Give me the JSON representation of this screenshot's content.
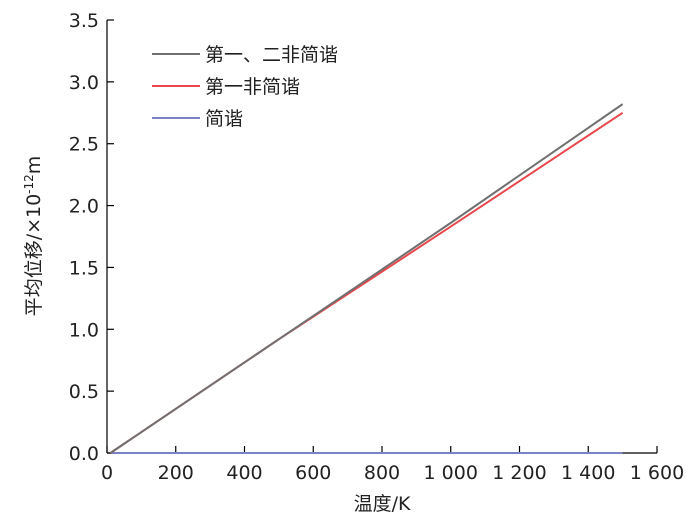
{
  "chart_data": {
    "type": "line",
    "xlabel": "温度/K",
    "ylabel": "平均位移/×10",
    "ylabel_exponent": "-12",
    "ylabel_unit": "m",
    "xlim": [
      0,
      1600
    ],
    "ylim": [
      0,
      3.5
    ],
    "x_ticks": [
      0,
      200,
      400,
      600,
      800,
      1000,
      1200,
      1400,
      1600
    ],
    "x_tick_labels": [
      "0",
      "200",
      "400",
      "600",
      "800",
      "1 000",
      "1 200",
      "1 400",
      "1 600"
    ],
    "y_ticks": [
      0,
      0.5,
      1.0,
      1.5,
      2.0,
      2.5,
      3.0,
      3.5
    ],
    "y_tick_labels": [
      "0.0",
      "0.5",
      "1.0",
      "1.5",
      "2.0",
      "2.5",
      "3.0",
      "3.5"
    ],
    "grid": false,
    "legend_position": "top-left",
    "series": [
      {
        "name": "第一、二非简谐",
        "color": "#707070",
        "x": [
          10,
          500,
          1000,
          1500
        ],
        "y": [
          0.0,
          0.92,
          1.86,
          2.82
        ]
      },
      {
        "name": "第一非简谐",
        "color": "#e8474c",
        "x": [
          10,
          500,
          1000,
          1500
        ],
        "y": [
          0.0,
          0.92,
          1.83,
          2.75
        ]
      },
      {
        "name": "简谐",
        "color": "#7b82c4",
        "x": [
          10,
          1500
        ],
        "y": [
          0.0,
          0.0
        ]
      }
    ]
  }
}
